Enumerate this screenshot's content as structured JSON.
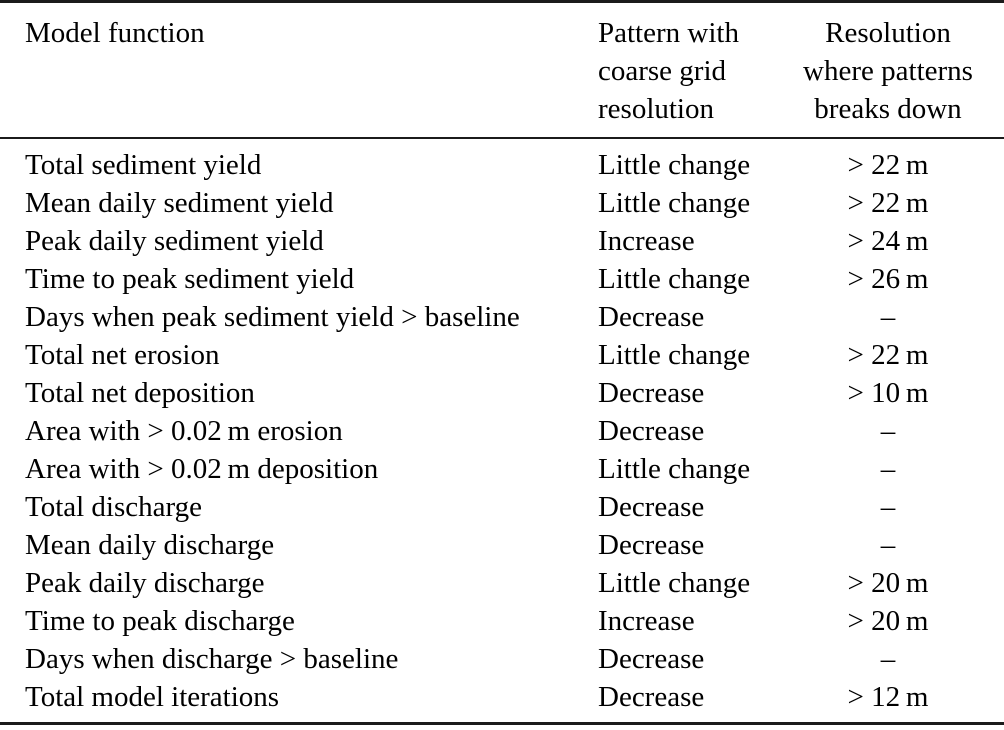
{
  "colors": {
    "background": "#ffffff",
    "text": "#000000",
    "rule": "#1b1b1b"
  },
  "table": {
    "header": {
      "model_function": "Model function",
      "pattern_lines": [
        "Pattern with",
        "coarse grid",
        "resolution"
      ],
      "resolution_lines": [
        "Resolution",
        "where patterns",
        "breaks down"
      ]
    },
    "rows": [
      {
        "function": "Total sediment yield",
        "pattern": "Little change",
        "resolution": "> 22 m"
      },
      {
        "function": "Mean daily sediment yield",
        "pattern": "Little change",
        "resolution": "> 22 m"
      },
      {
        "function": "Peak daily sediment yield",
        "pattern": "Increase",
        "resolution": "> 24 m"
      },
      {
        "function": "Time to peak sediment yield",
        "pattern": "Little change",
        "resolution": "> 26 m"
      },
      {
        "function": "Days when peak sediment yield > baseline",
        "pattern": "Decrease",
        "resolution": "–"
      },
      {
        "function": "Total net erosion",
        "pattern": "Little change",
        "resolution": "> 22 m"
      },
      {
        "function": "Total net deposition",
        "pattern": "Decrease",
        "resolution": "> 10 m"
      },
      {
        "function": "Area with > 0.02 m erosion",
        "pattern": "Decrease",
        "resolution": "–"
      },
      {
        "function": "Area with > 0.02 m deposition",
        "pattern": "Little change",
        "resolution": "–"
      },
      {
        "function": "Total discharge",
        "pattern": "Decrease",
        "resolution": "–"
      },
      {
        "function": "Mean daily discharge",
        "pattern": "Decrease",
        "resolution": "–"
      },
      {
        "function": "Peak daily discharge",
        "pattern": "Little change",
        "resolution": "> 20 m"
      },
      {
        "function": "Time to peak discharge",
        "pattern": "Increase",
        "resolution": "> 20 m"
      },
      {
        "function": "Days when discharge > baseline",
        "pattern": "Decrease",
        "resolution": "–"
      },
      {
        "function": "Total model iterations",
        "pattern": "Decrease",
        "resolution": "> 12 m"
      }
    ]
  }
}
